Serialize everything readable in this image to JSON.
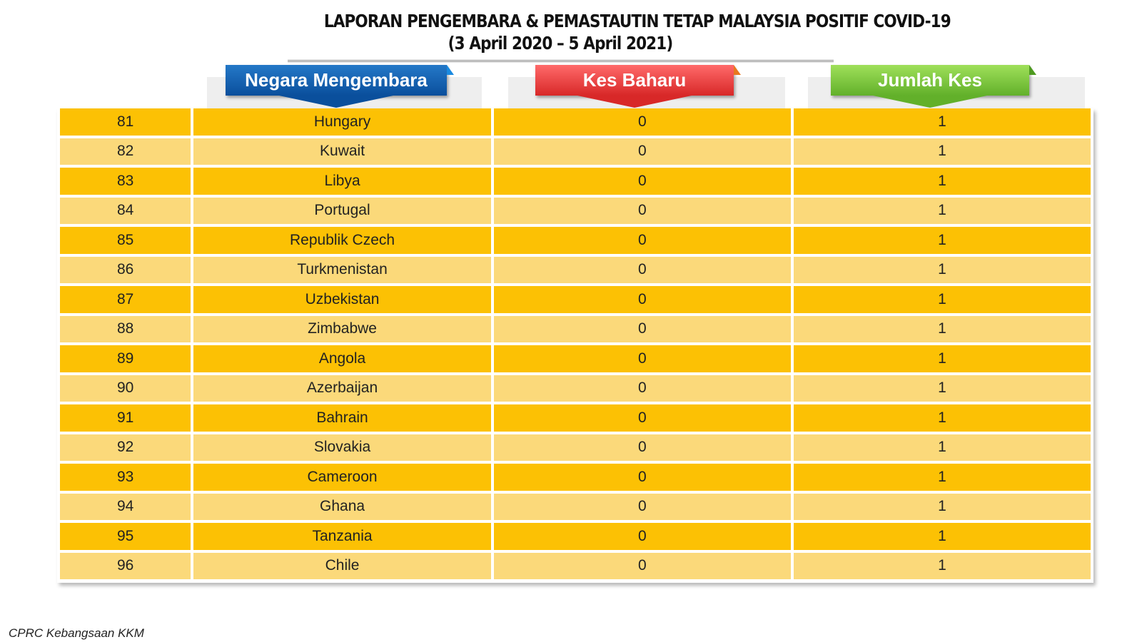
{
  "title": {
    "line1": "LAPORAN PENGEMBARA & PEMASTAUTIN TETAP MALAYSIA POSITIF COVID-19",
    "line2": "(3 April 2020 – 5 April  2021)"
  },
  "headers": {
    "country": "Negara Mengembara",
    "new_cases": "Kes Baharu",
    "total_cases": "Jumlah Kes"
  },
  "colors": {
    "row_dark": "#fcc104",
    "row_light": "#fbd97a",
    "header_blue": "#0a4f9c",
    "header_red": "#d82828",
    "header_green": "#62b02a"
  },
  "rows": [
    {
      "no": "81",
      "country": "Hungary",
      "new": "0",
      "total": "1"
    },
    {
      "no": "82",
      "country": "Kuwait",
      "new": "0",
      "total": "1"
    },
    {
      "no": "83",
      "country": "Libya",
      "new": "0",
      "total": "1"
    },
    {
      "no": "84",
      "country": "Portugal",
      "new": "0",
      "total": "1"
    },
    {
      "no": "85",
      "country": "Republik Czech",
      "new": "0",
      "total": "1"
    },
    {
      "no": "86",
      "country": "Turkmenistan",
      "new": "0",
      "total": "1"
    },
    {
      "no": "87",
      "country": "Uzbekistan",
      "new": "0",
      "total": "1"
    },
    {
      "no": "88",
      "country": "Zimbabwe",
      "new": "0",
      "total": "1"
    },
    {
      "no": "89",
      "country": "Angola",
      "new": "0",
      "total": "1"
    },
    {
      "no": "90",
      "country": "Azerbaijan",
      "new": "0",
      "total": "1"
    },
    {
      "no": "91",
      "country": "Bahrain",
      "new": "0",
      "total": "1"
    },
    {
      "no": "92",
      "country": "Slovakia",
      "new": "0",
      "total": "1"
    },
    {
      "no": "93",
      "country": "Cameroon",
      "new": "0",
      "total": "1"
    },
    {
      "no": "94",
      "country": "Ghana",
      "new": "0",
      "total": "1"
    },
    {
      "no": "95",
      "country": "Tanzania",
      "new": "0",
      "total": "1"
    },
    {
      "no": "96",
      "country": "Chile",
      "new": "0",
      "total": "1"
    }
  ],
  "footer": "CPRC Kebangsaan KKM"
}
